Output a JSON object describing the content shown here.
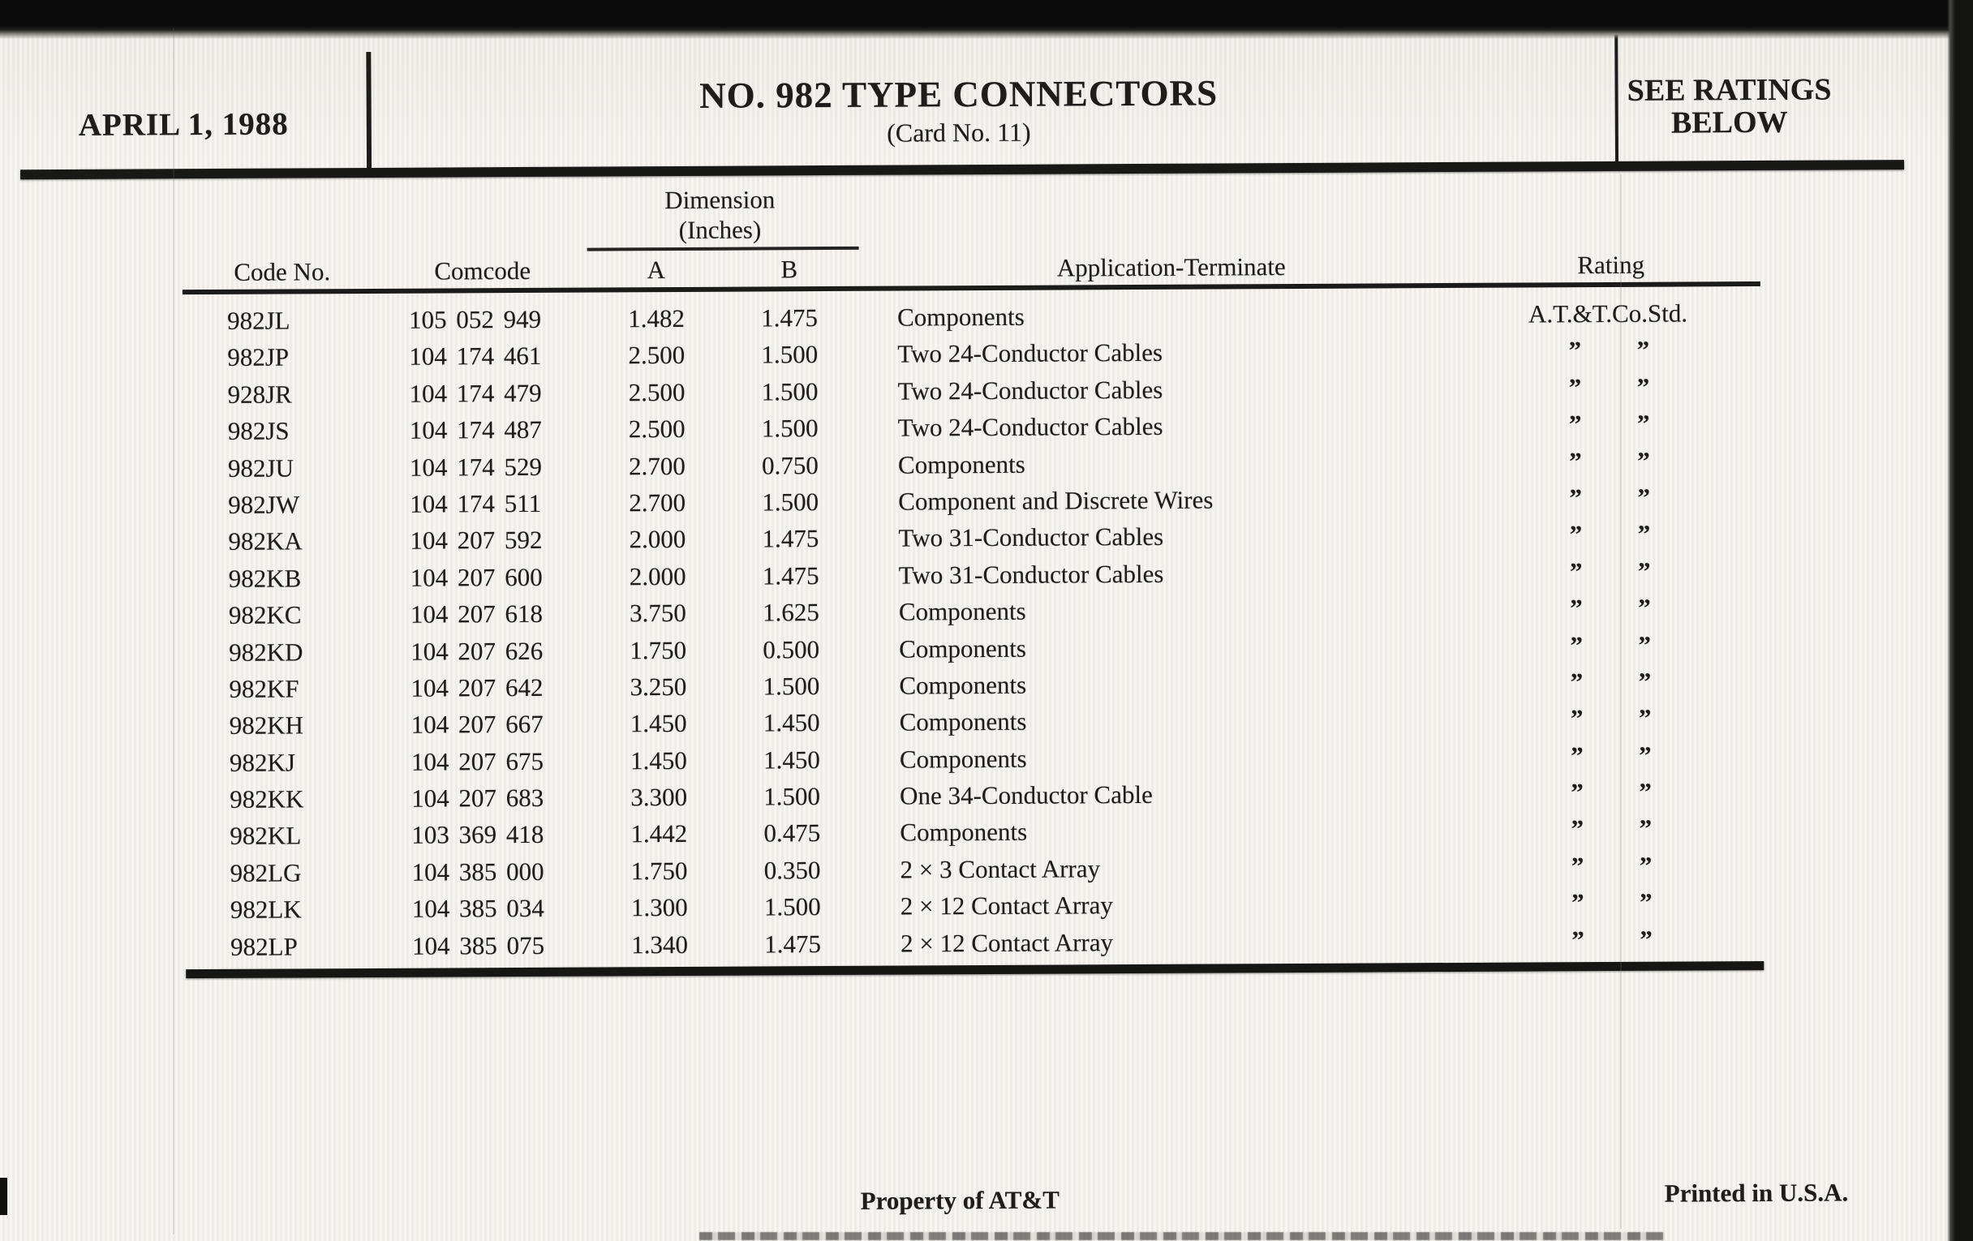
{
  "colors": {
    "paper": "#f3f1ec",
    "ink": "#1e1d1b",
    "scanner_band": "#141413"
  },
  "header": {
    "date": "APRIL 1, 1988",
    "title": "NO. 982 TYPE CONNECTORS",
    "card_no": "(Card No. 11)",
    "see_ratings_line1": "SEE RATINGS",
    "see_ratings_line2": "BELOW"
  },
  "table": {
    "dimension_label": "Dimension",
    "dimension_units": "(Inches)",
    "col_code": "Code No.",
    "col_comcode": "Comcode",
    "col_a": "A",
    "col_b": "B",
    "col_application": "Application-Terminate",
    "col_rating": "Rating",
    "ditto": "”",
    "rows": [
      {
        "code": "982JL",
        "comcode": "105 052 949",
        "a": "1.482",
        "b": "1.475",
        "application": "Components",
        "rating": "A.T.&T.Co.Std."
      },
      {
        "code": "982JP",
        "comcode": "104 174 461",
        "a": "2.500",
        "b": "1.500",
        "application": "Two 24-Conductor Cables"
      },
      {
        "code": "928JR",
        "comcode": "104 174 479",
        "a": "2.500",
        "b": "1.500",
        "application": "Two 24-Conductor Cables"
      },
      {
        "code": "982JS",
        "comcode": "104 174 487",
        "a": "2.500",
        "b": "1.500",
        "application": "Two 24-Conductor Cables"
      },
      {
        "code": "982JU",
        "comcode": "104 174 529",
        "a": "2.700",
        "b": "0.750",
        "application": "Components"
      },
      {
        "code": "982JW",
        "comcode": "104 174 511",
        "a": "2.700",
        "b": "1.500",
        "application": "Component and Discrete Wires"
      },
      {
        "code": "982KA",
        "comcode": "104 207 592",
        "a": "2.000",
        "b": "1.475",
        "application": "Two 31-Conductor Cables"
      },
      {
        "code": "982KB",
        "comcode": "104 207 600",
        "a": "2.000",
        "b": "1.475",
        "application": "Two 31-Conductor Cables"
      },
      {
        "code": "982KC",
        "comcode": "104 207 618",
        "a": "3.750",
        "b": "1.625",
        "application": "Components"
      },
      {
        "code": "982KD",
        "comcode": "104 207 626",
        "a": "1.750",
        "b": "0.500",
        "application": "Components"
      },
      {
        "code": "982KF",
        "comcode": "104 207 642",
        "a": "3.250",
        "b": "1.500",
        "application": "Components"
      },
      {
        "code": "982KH",
        "comcode": "104 207 667",
        "a": "1.450",
        "b": "1.450",
        "application": "Components"
      },
      {
        "code": "982KJ",
        "comcode": "104 207 675",
        "a": "1.450",
        "b": "1.450",
        "application": "Components"
      },
      {
        "code": "982KK",
        "comcode": "104 207 683",
        "a": "3.300",
        "b": "1.500",
        "application": "One 34-Conductor Cable"
      },
      {
        "code": "982KL",
        "comcode": "103 369 418",
        "a": "1.442",
        "b": "0.475",
        "application": "Components"
      },
      {
        "code": "982LG",
        "comcode": "104 385 000",
        "a": "1.750",
        "b": "0.350",
        "application": "2 × 3 Contact Array"
      },
      {
        "code": "982LK",
        "comcode": "104 385 034",
        "a": "1.300",
        "b": "1.500",
        "application": "2 × 12 Contact Array"
      },
      {
        "code": "982LP",
        "comcode": "104 385 075",
        "a": "1.340",
        "b": "1.475",
        "application": "2 × 12 Contact Array"
      }
    ]
  },
  "footer": {
    "property": "Property of AT&T",
    "printed": "Printed in U.S.A."
  }
}
